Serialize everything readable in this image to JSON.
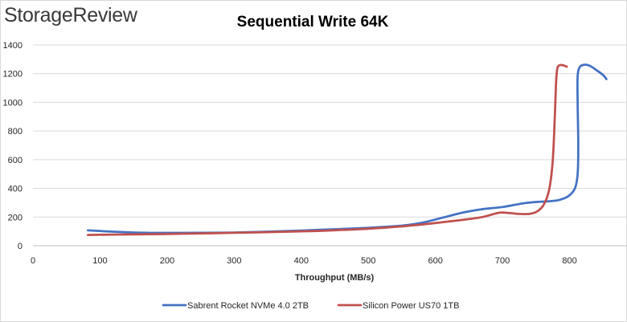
{
  "brand": {
    "logo_text": "StorageReview"
  },
  "chart_data": {
    "type": "line",
    "title": "Sequential Write 64K",
    "xlabel": "Throughput (MB/s)",
    "ylabel": "",
    "xlim": [
      0,
      900
    ],
    "ylim": [
      0,
      1400
    ],
    "x_ticks": [
      0,
      100,
      200,
      300,
      400,
      500,
      600,
      700,
      800
    ],
    "y_ticks": [
      0,
      200,
      400,
      600,
      800,
      1000,
      1200,
      1400
    ],
    "grid": {
      "horizontal": true,
      "vertical": false
    },
    "legend_position": "bottom",
    "series": [
      {
        "name": "Sabrent Rocket NVMe 4.0 2TB",
        "color": "#4472c4",
        "points": [
          [
            82,
            107
          ],
          [
            120,
            98
          ],
          [
            170,
            90
          ],
          [
            250,
            90
          ],
          [
            300,
            92
          ],
          [
            350,
            98
          ],
          [
            400,
            106
          ],
          [
            450,
            115
          ],
          [
            500,
            125
          ],
          [
            550,
            140
          ],
          [
            580,
            160
          ],
          [
            610,
            195
          ],
          [
            640,
            230
          ],
          [
            670,
            255
          ],
          [
            700,
            270
          ],
          [
            730,
            295
          ],
          [
            750,
            305
          ],
          [
            770,
            310
          ],
          [
            785,
            320
          ],
          [
            798,
            345
          ],
          [
            808,
            400
          ],
          [
            812,
            500
          ],
          [
            813,
            700
          ],
          [
            812,
            1000
          ],
          [
            812,
            1180
          ],
          [
            815,
            1245
          ],
          [
            822,
            1262
          ],
          [
            830,
            1255
          ],
          [
            840,
            1225
          ],
          [
            850,
            1190
          ],
          [
            855,
            1162
          ]
        ]
      },
      {
        "name": "Silicon Power US70 1TB",
        "color": "#c0504d",
        "points": [
          [
            82,
            75
          ],
          [
            120,
            78
          ],
          [
            200,
            82
          ],
          [
            300,
            90
          ],
          [
            400,
            100
          ],
          [
            450,
            108
          ],
          [
            500,
            118
          ],
          [
            550,
            135
          ],
          [
            600,
            158
          ],
          [
            640,
            180
          ],
          [
            670,
            200
          ],
          [
            695,
            230
          ],
          [
            710,
            228
          ],
          [
            725,
            222
          ],
          [
            740,
            222
          ],
          [
            752,
            240
          ],
          [
            762,
            290
          ],
          [
            770,
            400
          ],
          [
            775,
            600
          ],
          [
            778,
            900
          ],
          [
            780,
            1150
          ],
          [
            782,
            1240
          ],
          [
            786,
            1260
          ],
          [
            792,
            1256
          ],
          [
            796,
            1248
          ]
        ]
      }
    ]
  }
}
